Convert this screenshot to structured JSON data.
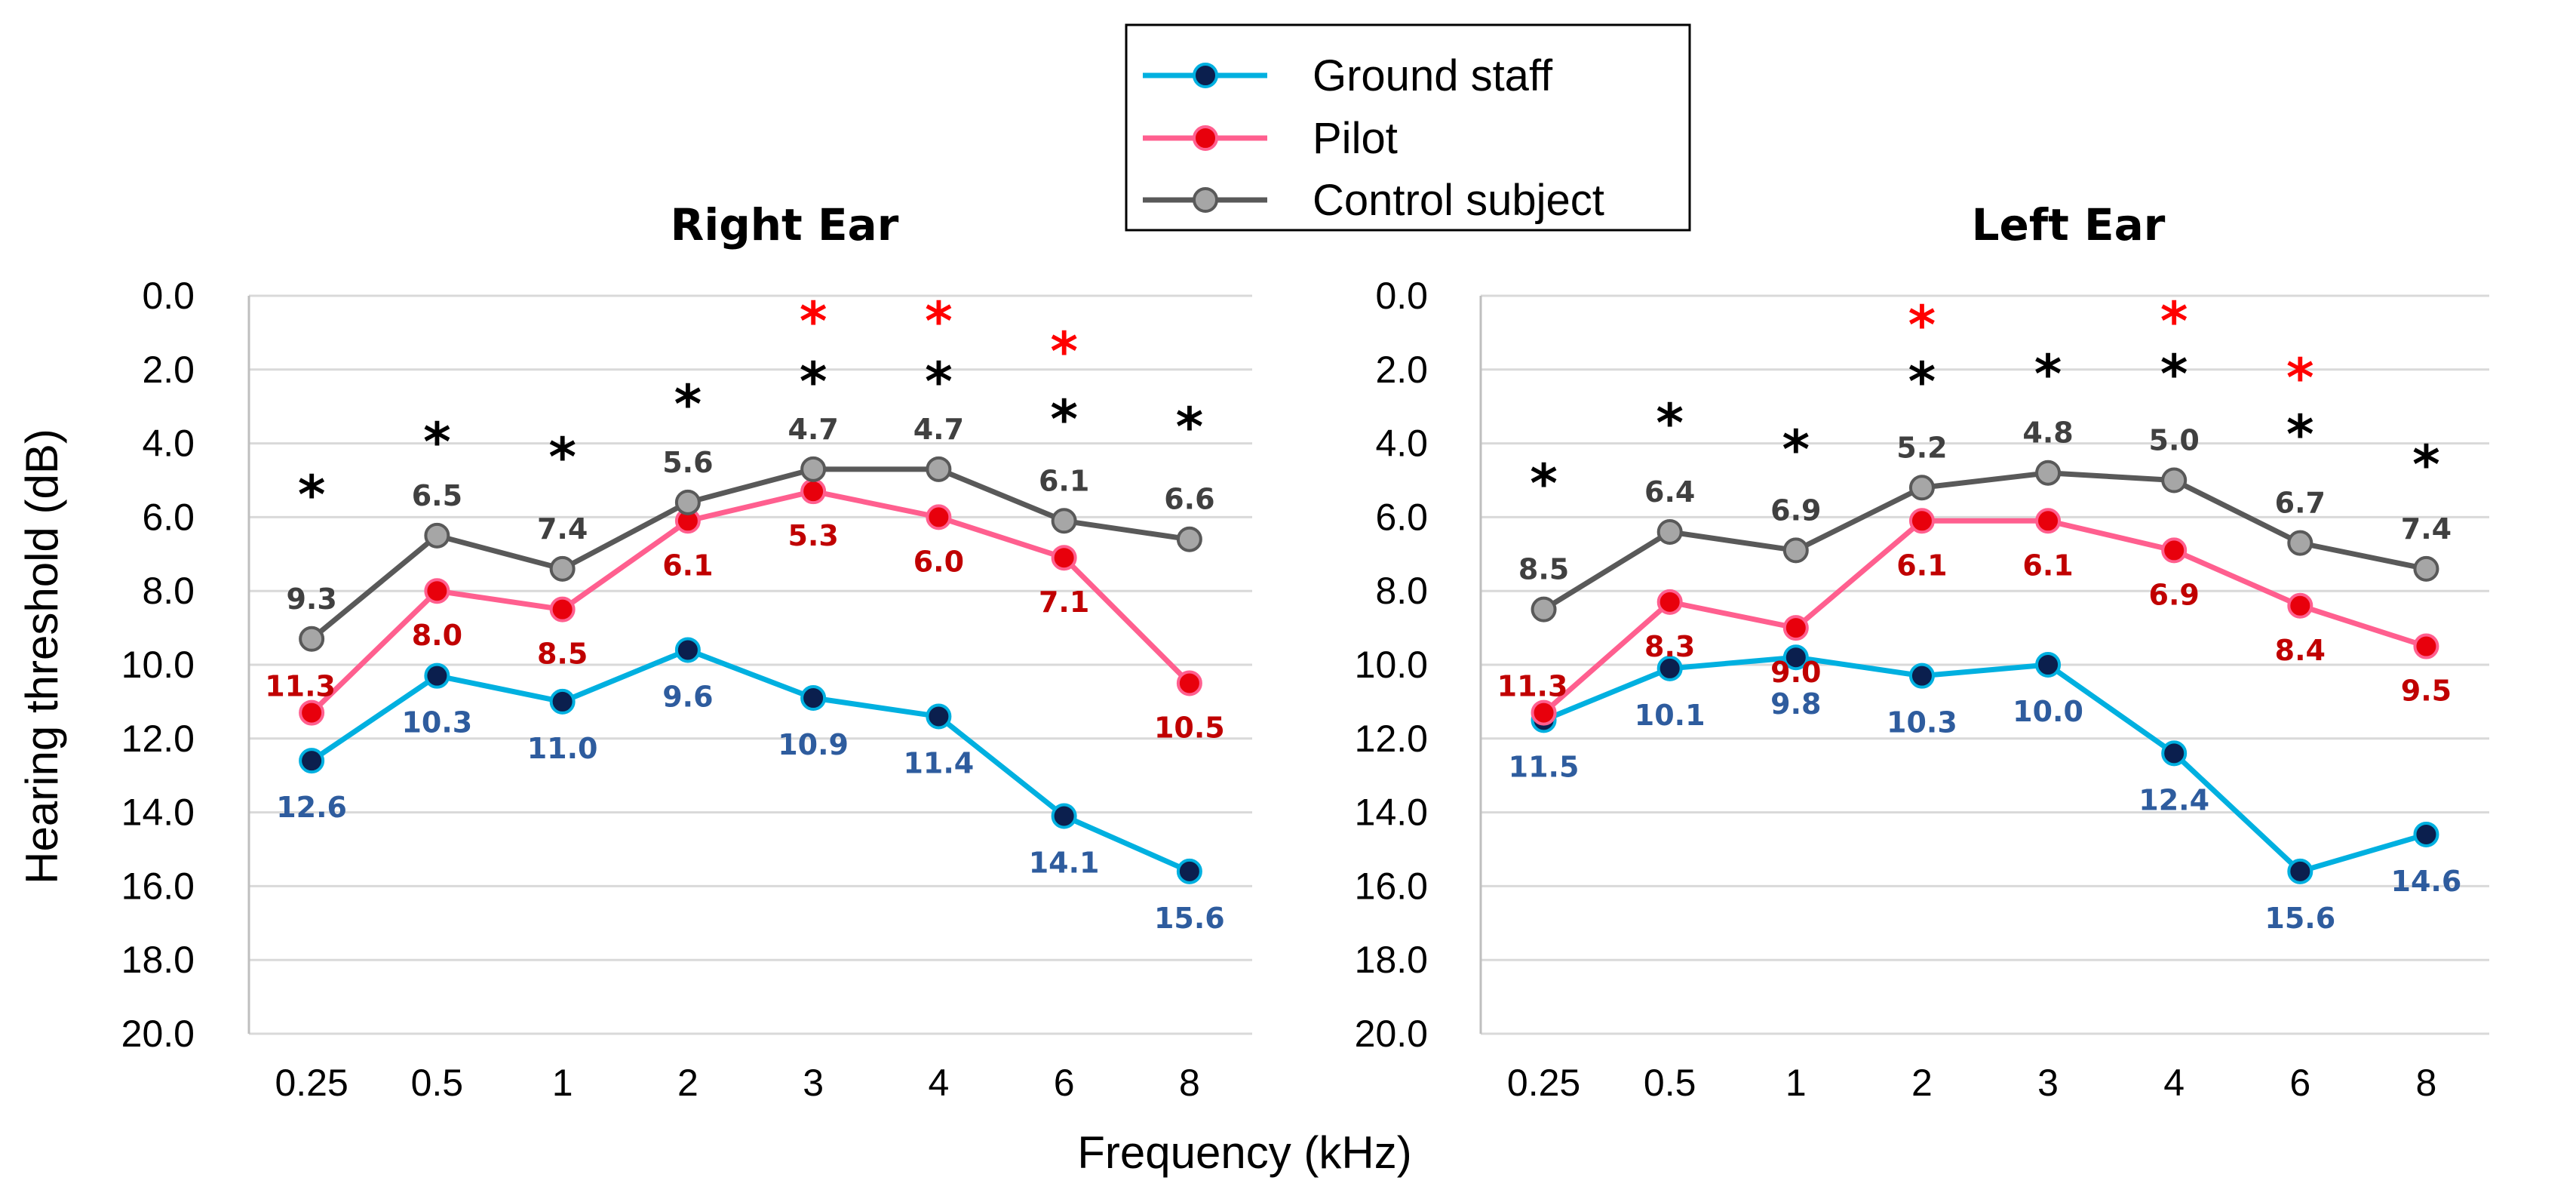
{
  "chart_data": {
    "type": "line",
    "xlabel": "Frequency (kHz)",
    "ylabel": "Hearing threshold (dB)",
    "ylim": [
      0,
      20
    ],
    "y_inverted": true,
    "y_ticks": [
      "0.0",
      "2.0",
      "4.0",
      "6.0",
      "8.0",
      "10.0",
      "12.0",
      "14.0",
      "16.0",
      "18.0",
      "20.0"
    ],
    "categories": [
      "0.25",
      "0.5",
      "1",
      "2",
      "3",
      "4",
      "6",
      "8"
    ],
    "grid": true,
    "legend_placement": "top-center",
    "series_styles": [
      {
        "name": "Ground staff",
        "line_color": "#00b0e0",
        "marker_color": "#0b1f4e",
        "label_color": "#2e5c9e"
      },
      {
        "name": "Pilot",
        "line_color": "#ff5f8f",
        "marker_color": "#e8000c",
        "label_color": "#c00000"
      },
      {
        "name": "Control subject",
        "line_color": "#595959",
        "marker_color": "#a6a6a6",
        "label_color": "#404040"
      }
    ],
    "star_colors": {
      "black": "#000000",
      "red": "#ff0000"
    },
    "panels": [
      {
        "title": "Right Ear",
        "series": [
          {
            "name": "Ground staff",
            "values": [
              12.6,
              10.3,
              11.0,
              9.6,
              10.9,
              11.4,
              14.1,
              15.6
            ],
            "labels": [
              "12.6",
              "10.3",
              "11.0",
              "9.6",
              "10.9",
              "11.4",
              "14.1",
              "15.6"
            ]
          },
          {
            "name": "Pilot",
            "values": [
              11.3,
              8.0,
              8.5,
              6.1,
              5.3,
              6.0,
              7.1,
              10.5
            ],
            "labels": [
              "11.3",
              "8.0",
              "8.5",
              "6.1",
              "5.3",
              "6.0",
              "7.1",
              "10.5"
            ]
          },
          {
            "name": "Control subject",
            "values": [
              9.3,
              6.5,
              7.4,
              5.6,
              4.7,
              4.7,
              6.1,
              6.6
            ],
            "labels": [
              "9.3",
              "6.5",
              "7.4",
              "5.6",
              "4.7",
              "4.7",
              "6.1",
              "6.6"
            ]
          }
        ],
        "black_stars": [
          true,
          true,
          true,
          true,
          true,
          true,
          true,
          true
        ],
        "red_stars": [
          false,
          false,
          false,
          false,
          true,
          true,
          true,
          false
        ]
      },
      {
        "title": "Left Ear",
        "series": [
          {
            "name": "Ground staff",
            "values": [
              11.5,
              10.1,
              9.8,
              10.3,
              10.0,
              12.4,
              15.6,
              14.6
            ],
            "labels": [
              "11.5",
              "10.1",
              "9.8",
              "10.3",
              "10.0",
              "12.4",
              "15.6",
              "14.6"
            ]
          },
          {
            "name": "Pilot",
            "values": [
              11.3,
              8.3,
              9.0,
              6.1,
              6.1,
              6.9,
              8.4,
              9.5
            ],
            "labels": [
              "11.3",
              "8.3",
              "9.0",
              "6.1",
              "6.1",
              "6.9",
              "8.4",
              "9.5"
            ]
          },
          {
            "name": "Control subject",
            "values": [
              8.5,
              6.4,
              6.9,
              5.2,
              4.8,
              5.0,
              6.7,
              7.4
            ],
            "labels": [
              "8.5",
              "6.4",
              "6.9",
              "5.2",
              "4.8",
              "5.0",
              "6.7",
              "7.4"
            ]
          }
        ],
        "black_stars": [
          true,
          true,
          true,
          true,
          true,
          true,
          true,
          true
        ],
        "red_stars": [
          false,
          false,
          false,
          true,
          false,
          true,
          true,
          false
        ]
      }
    ]
  }
}
